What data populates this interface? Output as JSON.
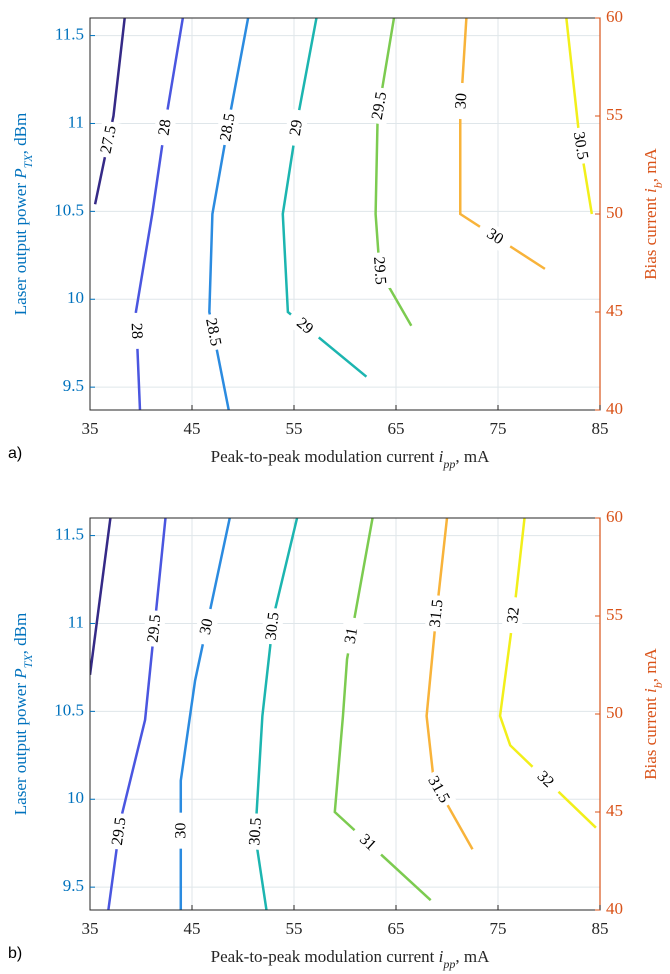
{
  "chart_data": [
    {
      "type": "contour",
      "panel_label": "a)",
      "xlabel": [
        "Peak-to-peak modulation current ",
        "i",
        "pp",
        ", mA"
      ],
      "ylabel": [
        "Laser output power ",
        "P",
        "TX",
        ", dBm"
      ],
      "y2label": [
        "Bias current ",
        "i",
        "b",
        ", mA"
      ],
      "xlim": [
        35,
        85
      ],
      "xticks": [
        35,
        45,
        55,
        65,
        75,
        85
      ],
      "ylim": [
        9.37,
        11.6
      ],
      "yticks": [
        9.5,
        10,
        10.5,
        11,
        11.5
      ],
      "y2lim": [
        40,
        60
      ],
      "y2ticks": [
        40,
        45,
        50,
        55,
        60
      ],
      "grid": true,
      "ycolor": "#0072bd",
      "y2color": "#d95319",
      "series": [
        {
          "level": 27.5,
          "color": "#352a87",
          "axis": "y2",
          "x": [
            35.5,
            37.3,
            38.4
          ],
          "y": [
            50.5,
            55,
            60
          ]
        },
        {
          "level": 28,
          "color": "#4a56e0",
          "axis": "y2",
          "x": [
            39.9,
            39.5,
            41.1,
            42.5,
            44.1
          ],
          "y": [
            40,
            45,
            50,
            55,
            60
          ]
        },
        {
          "level": 28.5,
          "color": "#2b8be0",
          "axis": "y2",
          "x": [
            48.6,
            46.7,
            47,
            48.7,
            50.5
          ],
          "y": [
            40,
            45,
            50,
            55,
            60
          ]
        },
        {
          "level": 29,
          "color": "#1cb5b0",
          "axis": "y2",
          "x": [
            62.1,
            54.4,
            53.9,
            55.4,
            57.2
          ],
          "y": [
            41.7,
            45,
            50,
            55,
            60
          ]
        },
        {
          "level": 29.5,
          "color": "#7ccb50",
          "axis": "y2",
          "x": [
            66.5,
            63.4,
            63,
            63.2,
            64.8
          ],
          "y": [
            44.3,
            47.1,
            50,
            55,
            60
          ]
        },
        {
          "level": 30,
          "color": "#f8b33a",
          "axis": "y2",
          "x": [
            79.6,
            71.3,
            71.3,
            71.9
          ],
          "y": [
            47.2,
            50,
            55,
            60
          ]
        },
        {
          "level": 30.5,
          "color": "#f2ef1a",
          "axis": "y2",
          "x": [
            84.2,
            83,
            81.7
          ],
          "y": [
            50,
            53.8,
            60
          ]
        }
      ]
    },
    {
      "type": "contour",
      "panel_label": "b)",
      "xlabel": [
        "Peak-to-peak modulation current ",
        "i",
        "pp",
        ", mA"
      ],
      "ylabel": [
        "Laser output power ",
        "P",
        "TX",
        ", dBm"
      ],
      "y2label": [
        "Bias current ",
        "i",
        "b",
        ", mA"
      ],
      "xlim": [
        35,
        85
      ],
      "xticks": [
        35,
        45,
        55,
        65,
        75,
        85
      ],
      "ylim": [
        9.37,
        11.6
      ],
      "yticks": [
        9.5,
        10,
        10.5,
        11,
        11.5
      ],
      "y2lim": [
        40,
        60
      ],
      "y2ticks": [
        40,
        45,
        50,
        55,
        60
      ],
      "grid": true,
      "ycolor": "#0072bd",
      "y2color": "#d95319",
      "series": [
        {
          "color": "#352a87",
          "axis": "y2",
          "x": [
            35,
            37
          ],
          "y": [
            52,
            60
          ]
        },
        {
          "level": 29.5,
          "color": "#4a56e0",
          "axis": "y2",
          "x": [
            36.8,
            38,
            40.4,
            42.4
          ],
          "y": [
            40,
            44.6,
            49.7,
            60
          ]
        },
        {
          "level": 30,
          "color": "#2b8be0",
          "axis": "y2",
          "x": [
            43.9,
            43.9,
            45.3,
            48.7
          ],
          "y": [
            40,
            46.6,
            51.7,
            60
          ]
        },
        {
          "level": 30.5,
          "color": "#1cb5b0",
          "axis": "y2",
          "x": [
            52.3,
            51.2,
            51.9,
            53,
            55.3
          ],
          "y": [
            40,
            43.8,
            49.9,
            55,
            60
          ]
        },
        {
          "level": 31,
          "color": "#7ccb50",
          "axis": "y2",
          "x": [
            68.4,
            59,
            59.8,
            60.2,
            62.7
          ],
          "y": [
            40.5,
            45,
            49.9,
            52.8,
            60
          ]
        },
        {
          "level": 31.5,
          "color": "#f8b33a",
          "axis": "y2",
          "x": [
            72.5,
            68.7,
            68,
            68.9,
            70
          ],
          "y": [
            43.1,
            46.6,
            49.9,
            54.8,
            60
          ]
        },
        {
          "level": 32,
          "color": "#f2ef1a",
          "axis": "y2",
          "x": [
            84.6,
            76.2,
            75.2,
            76.7,
            77.6
          ],
          "y": [
            44.2,
            48.4,
            49.9,
            55.8,
            60
          ]
        }
      ]
    }
  ]
}
